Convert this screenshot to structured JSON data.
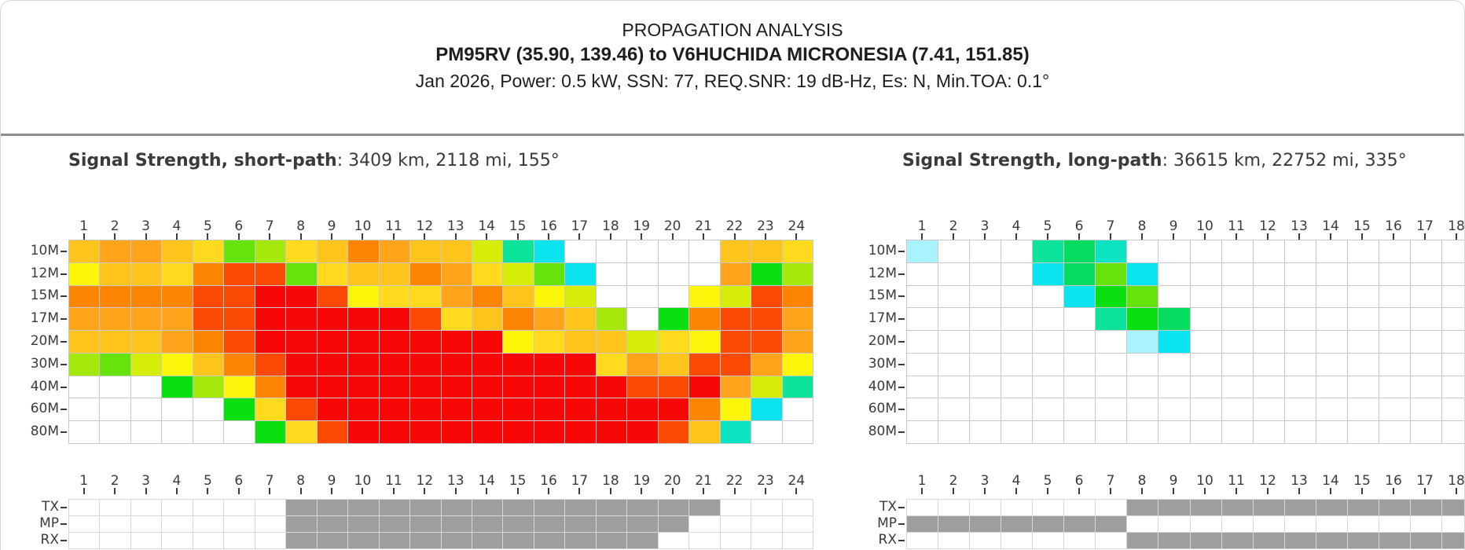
{
  "header": {
    "line1": "PROPAGATION ANALYSIS",
    "line2": "PM95RV (35.90, 139.46) to V6HUCHIDA MICRONESIA (7.41, 151.85)",
    "line3": "Jan 2026, Power: 0.5 kW, SSN: 77, REQ.SNR: 19 dB-Hz, Es: N, Min.TOA: 0.1°"
  },
  "palette": {
    "W": "#FFFFFF",
    "R": "#F90606",
    "OR": "#FB4A03",
    "DO": "#FE8502",
    "O": "#FFA41B",
    "AM": "#FFC51D",
    "GO": "#FFDA1D",
    "Y": "#FDF50A",
    "YG": "#D5ED09",
    "GY": "#A4E90B",
    "LG": "#66E30A",
    "GR": "#0ADF12",
    "MG": "#06DC5F",
    "SG": "#0CE49B",
    "TQ": "#0BE3C3",
    "CY": "#0AE4EF",
    "LC": "#AAF3FE"
  },
  "daynight_color": "#9E9E9E",
  "chart_data": [
    {
      "type": "heatmap",
      "title_bold": "Signal Strength, short-path",
      "title_rest": ": 3409 km, 2118 mi, 155°",
      "x_ticks": [
        "1",
        "2",
        "3",
        "4",
        "5",
        "6",
        "7",
        "8",
        "9",
        "10",
        "11",
        "12",
        "13",
        "14",
        "15",
        "16",
        "17",
        "18",
        "19",
        "20",
        "21",
        "22",
        "23",
        "24"
      ],
      "y_ticks": [
        "10M",
        "12M",
        "15M",
        "17M",
        "20M",
        "30M",
        "40M",
        "60M",
        "80M"
      ],
      "cells": [
        [
          "AM",
          "O",
          "O",
          "AM",
          "GO",
          "LG",
          "GY",
          "GO",
          "AM",
          "DO",
          "O",
          "AM",
          "AM",
          "YG",
          "SG",
          "CY",
          "W",
          "W",
          "W",
          "W",
          "W",
          "AM",
          "AM",
          "GO"
        ],
        [
          "Y",
          "AM",
          "AM",
          "GO",
          "DO",
          "OR",
          "OR",
          "LG",
          "GO",
          "AM",
          "AM",
          "DO",
          "O",
          "GO",
          "YG",
          "LG",
          "CY",
          "W",
          "W",
          "W",
          "W",
          "O",
          "GR",
          "GY"
        ],
        [
          "DO",
          "DO",
          "DO",
          "DO",
          "OR",
          "OR",
          "R",
          "R",
          "OR",
          "Y",
          "GO",
          "GO",
          "O",
          "DO",
          "AM",
          "Y",
          "YG",
          "W",
          "W",
          "W",
          "Y",
          "YG",
          "OR",
          "DO"
        ],
        [
          "O",
          "O",
          "O",
          "O",
          "OR",
          "OR",
          "R",
          "R",
          "R",
          "R",
          "R",
          "OR",
          "GO",
          "AM",
          "DO",
          "O",
          "AM",
          "GY",
          "W",
          "GR",
          "DO",
          "OR",
          "OR",
          "O"
        ],
        [
          "AM",
          "AM",
          "AM",
          "O",
          "DO",
          "OR",
          "R",
          "R",
          "R",
          "R",
          "R",
          "R",
          "R",
          "R",
          "Y",
          "GO",
          "AM",
          "AM",
          "YG",
          "GO",
          "Y",
          "OR",
          "OR",
          "O"
        ],
        [
          "GY",
          "LG",
          "YG",
          "Y",
          "AM",
          "DO",
          "OR",
          "R",
          "R",
          "R",
          "R",
          "R",
          "R",
          "R",
          "R",
          "R",
          "R",
          "GO",
          "O",
          "AM",
          "OR",
          "OR",
          "O",
          "Y"
        ],
        [
          "W",
          "W",
          "W",
          "GR",
          "GY",
          "Y",
          "DO",
          "R",
          "R",
          "R",
          "R",
          "R",
          "R",
          "R",
          "R",
          "R",
          "R",
          "R",
          "OR",
          "OR",
          "R",
          "O",
          "YG",
          "SG"
        ],
        [
          "W",
          "W",
          "W",
          "W",
          "W",
          "GR",
          "GO",
          "OR",
          "R",
          "R",
          "R",
          "R",
          "R",
          "R",
          "R",
          "R",
          "R",
          "R",
          "R",
          "R",
          "DO",
          "Y",
          "CY",
          "W"
        ],
        [
          "W",
          "W",
          "W",
          "W",
          "W",
          "W",
          "GR",
          "GO",
          "OR",
          "R",
          "R",
          "R",
          "R",
          "R",
          "R",
          "R",
          "R",
          "R",
          "R",
          "OR",
          "AM",
          "TQ",
          "W",
          "W"
        ]
      ],
      "daynight_rows": [
        "TX",
        "MP",
        "RX"
      ],
      "daynight": [
        [
          0,
          0,
          0,
          0,
          0,
          0,
          0,
          1,
          1,
          1,
          1,
          1,
          1,
          1,
          1,
          1,
          1,
          1,
          1,
          1,
          1,
          0,
          0,
          0
        ],
        [
          0,
          0,
          0,
          0,
          0,
          0,
          0,
          1,
          1,
          1,
          1,
          1,
          1,
          1,
          1,
          1,
          1,
          1,
          1,
          1,
          0,
          0,
          0,
          0
        ],
        [
          0,
          0,
          0,
          0,
          0,
          0,
          0,
          1,
          1,
          1,
          1,
          1,
          1,
          1,
          1,
          1,
          1,
          1,
          1,
          0,
          0,
          0,
          0,
          0
        ]
      ]
    },
    {
      "type": "heatmap",
      "title_bold": "Signal Strength, long-path",
      "title_rest": ": 36615 km, 22752 mi, 335°",
      "x_ticks": [
        "1",
        "2",
        "3",
        "4",
        "5",
        "6",
        "7",
        "8",
        "9",
        "10",
        "11",
        "12",
        "13",
        "14",
        "15",
        "16",
        "17",
        "18"
      ],
      "y_ticks": [
        "10M",
        "12M",
        "15M",
        "17M",
        "20M",
        "30M",
        "40M",
        "60M",
        "80M"
      ],
      "cells": [
        [
          "LC",
          "W",
          "W",
          "W",
          "SG",
          "MG",
          "TQ",
          "W",
          "W",
          "W",
          "W",
          "W",
          "W",
          "W",
          "W",
          "W",
          "W",
          "W"
        ],
        [
          "W",
          "W",
          "W",
          "W",
          "CY",
          "MG",
          "LG",
          "CY",
          "W",
          "W",
          "W",
          "W",
          "W",
          "W",
          "W",
          "W",
          "W",
          "W"
        ],
        [
          "W",
          "W",
          "W",
          "W",
          "W",
          "CY",
          "GR",
          "LG",
          "W",
          "W",
          "W",
          "W",
          "W",
          "W",
          "W",
          "W",
          "W",
          "W"
        ],
        [
          "W",
          "W",
          "W",
          "W",
          "W",
          "W",
          "SG",
          "GR",
          "MG",
          "W",
          "W",
          "W",
          "W",
          "W",
          "W",
          "W",
          "W",
          "W"
        ],
        [
          "W",
          "W",
          "W",
          "W",
          "W",
          "W",
          "W",
          "LC",
          "CY",
          "W",
          "W",
          "W",
          "W",
          "W",
          "W",
          "W",
          "W",
          "W"
        ],
        [
          "W",
          "W",
          "W",
          "W",
          "W",
          "W",
          "W",
          "W",
          "W",
          "W",
          "W",
          "W",
          "W",
          "W",
          "W",
          "W",
          "W",
          "W"
        ],
        [
          "W",
          "W",
          "W",
          "W",
          "W",
          "W",
          "W",
          "W",
          "W",
          "W",
          "W",
          "W",
          "W",
          "W",
          "W",
          "W",
          "W",
          "W"
        ],
        [
          "W",
          "W",
          "W",
          "W",
          "W",
          "W",
          "W",
          "W",
          "W",
          "W",
          "W",
          "W",
          "W",
          "W",
          "W",
          "W",
          "W",
          "W"
        ],
        [
          "W",
          "W",
          "W",
          "W",
          "W",
          "W",
          "W",
          "W",
          "W",
          "W",
          "W",
          "W",
          "W",
          "W",
          "W",
          "W",
          "W",
          "W"
        ]
      ],
      "daynight_rows": [
        "TX",
        "MP",
        "RX"
      ],
      "daynight": [
        [
          0,
          0,
          0,
          0,
          0,
          0,
          0,
          1,
          1,
          1,
          1,
          1,
          1,
          1,
          1,
          1,
          1,
          1
        ],
        [
          1,
          1,
          1,
          1,
          1,
          1,
          1,
          0,
          0,
          0,
          0,
          0,
          0,
          0,
          0,
          0,
          0,
          0
        ],
        [
          0,
          0,
          0,
          0,
          0,
          0,
          0,
          1,
          1,
          1,
          1,
          1,
          1,
          1,
          1,
          1,
          1,
          1
        ]
      ]
    }
  ]
}
